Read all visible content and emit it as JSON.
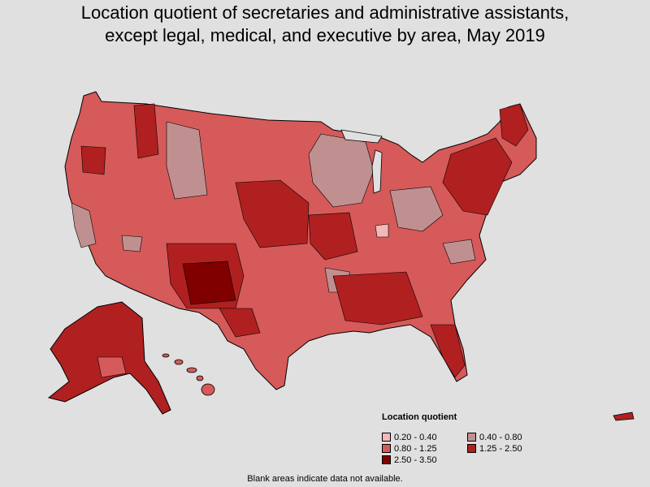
{
  "title_line1": "Location quotient of secretaries and administrative assistants,",
  "title_line2": "except legal, medical, and executive by area, May 2019",
  "legend": {
    "title": "Location quotient",
    "items": [
      {
        "label": "0.20 - 0.40",
        "color": "#f4b8b8"
      },
      {
        "label": "0.40 - 0.80",
        "color": "#c09090"
      },
      {
        "label": "0.80 - 1.25",
        "color": "#d65a5a"
      },
      {
        "label": "1.25 - 2.50",
        "color": "#b02020"
      },
      {
        "label": "2.50 - 3.50",
        "color": "#800000"
      }
    ]
  },
  "footnote": "Blank areas indicate data not available."
}
